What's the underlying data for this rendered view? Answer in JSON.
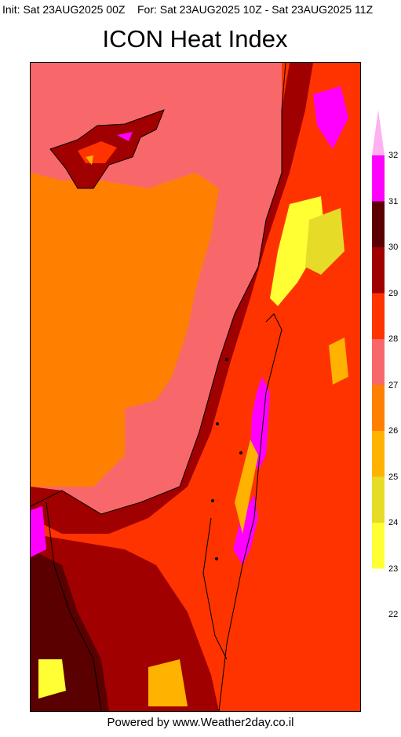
{
  "header": {
    "init": "Init: Sat 23AUG2025 00Z",
    "valid": "For: Sat 23AUG2025 10Z - Sat 23AUG2025 11Z"
  },
  "title": "ICON Heat Index",
  "legend": {
    "levels": [
      {
        "label": "32",
        "color": "#ff00ff"
      },
      {
        "label": "31",
        "color": "#5a0000"
      },
      {
        "label": "30",
        "color": "#a00000"
      },
      {
        "label": "29",
        "color": "#ff3300"
      },
      {
        "label": "28",
        "color": "#f8686a"
      },
      {
        "label": "27",
        "color": "#ff8000"
      },
      {
        "label": "26",
        "color": "#ffb300"
      },
      {
        "label": "25",
        "color": "#e6dc28"
      },
      {
        "label": "24",
        "color": "#ffff33"
      },
      {
        "label": "23",
        "color": "#ffffff"
      },
      {
        "label": "22",
        "color": "#ffffff"
      }
    ],
    "overflow_color": "#ffb0f0"
  },
  "footer": "Powered by www.Weather2day.co.il"
}
